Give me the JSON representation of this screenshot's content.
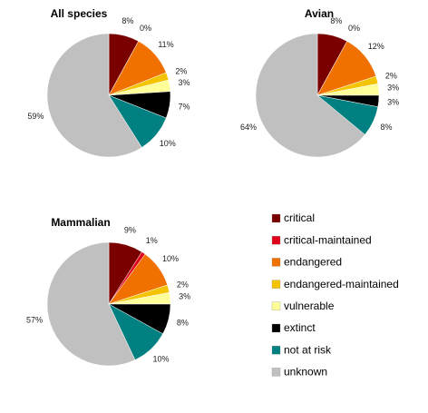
{
  "chart_data": [
    {
      "type": "pie",
      "title": "All species",
      "values": [
        8,
        0,
        11,
        2,
        3,
        7,
        10,
        59
      ],
      "value_labels": [
        "8%",
        "0%",
        "11%",
        "2%",
        "3%",
        "7%",
        "10%",
        "59%"
      ]
    },
    {
      "type": "pie",
      "title": "Avian",
      "values": [
        8,
        0,
        12,
        2,
        3,
        3,
        8,
        64
      ],
      "value_labels": [
        "8%",
        "0%",
        "12%",
        "2%",
        "3%",
        "3%",
        "8%",
        "64%"
      ]
    },
    {
      "type": "pie",
      "title": "Mammalian",
      "values": [
        9,
        1,
        10,
        2,
        3,
        8,
        10,
        57
      ],
      "value_labels": [
        "9%",
        "1%",
        "10%",
        "2%",
        "3%",
        "8%",
        "10%",
        "57%"
      ]
    }
  ],
  "legend": {
    "entries": [
      {
        "name": "critical",
        "color": "#7a0000"
      },
      {
        "name": "critical-maintained",
        "color": "#e0001a"
      },
      {
        "name": "endangered",
        "color": "#f07000"
      },
      {
        "name": "endangered-maintained",
        "color": "#f5c400"
      },
      {
        "name": "vulnerable",
        "color": "#ffff99"
      },
      {
        "name": "extinct",
        "color": "#000000"
      },
      {
        "name": "not at risk",
        "color": "#008080"
      },
      {
        "name": "unknown",
        "color": "#c0c0c0"
      }
    ]
  }
}
